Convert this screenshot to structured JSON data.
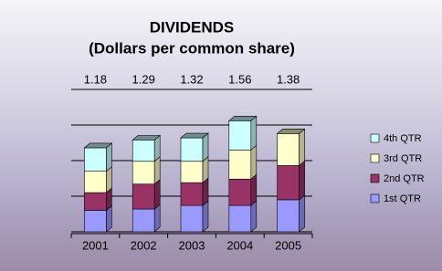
{
  "chart_data": {
    "type": "bar3d-stacked",
    "title": "DIVIDENDS",
    "subtitle": "(Dollars per common share)",
    "categories": [
      "2001",
      "2002",
      "2003",
      "2004",
      "2005"
    ],
    "totals": [
      1.18,
      1.29,
      1.32,
      1.56,
      1.38
    ],
    "series": [
      {
        "name": "1st QTR",
        "color": "#9999ff",
        "values": [
          0.3,
          0.32,
          0.37,
          0.37,
          0.45
        ]
      },
      {
        "name": "2nd QTR",
        "color": "#993366",
        "values": [
          0.25,
          0.35,
          0.32,
          0.37,
          0.48
        ]
      },
      {
        "name": "3rd QTR",
        "color": "#ffffcc",
        "values": [
          0.3,
          0.32,
          0.3,
          0.41,
          0.45
        ]
      },
      {
        "name": "4th QTR",
        "color": "#ccffff",
        "values": [
          0.33,
          0.3,
          0.33,
          0.41,
          null
        ]
      }
    ],
    "ylim": [
      0,
      2
    ],
    "yticks": [
      0,
      0.5,
      1,
      1.5,
      2
    ],
    "grid": true,
    "legend": "right"
  }
}
